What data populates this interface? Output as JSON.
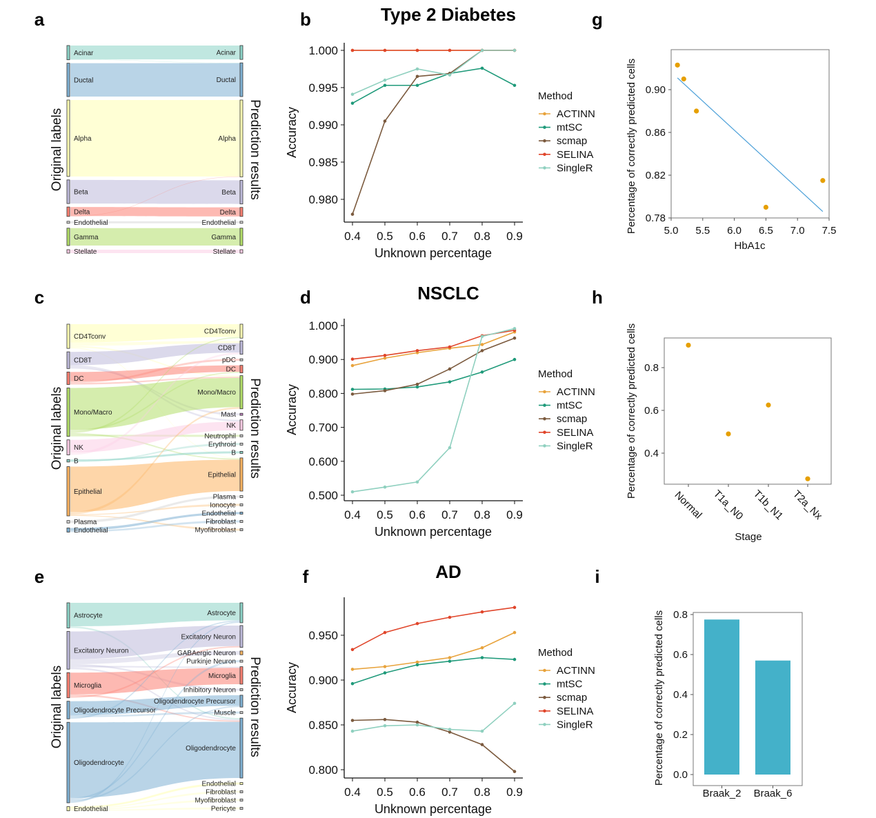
{
  "sankeys": [
    {
      "letter": "a",
      "left_axis_label": "Original labels",
      "right_axis_label": "Prediction results",
      "colors": {
        "Acinar": "#8dd3c7",
        "Ductal": "#80b1d3",
        "Alpha": "#ffffb3",
        "Beta": "#bebada",
        "Delta": "#fb8072",
        "Endothelial": "#d9d9d9",
        "Gamma": "#b3de69",
        "Stellate": "#fccde5"
      },
      "left_order": [
        "Acinar",
        "Ductal",
        "Alpha",
        "Beta",
        "Delta",
        "Endothelial",
        "Gamma",
        "Stellate"
      ],
      "right_order": [
        "Acinar",
        "Ductal",
        "Alpha",
        "Beta",
        "Delta",
        "Endothelial",
        "Gamma",
        "Stellate"
      ],
      "links": [
        [
          "Acinar",
          "Acinar",
          20
        ],
        [
          "Acinar",
          "Ductal",
          0.5
        ],
        [
          "Ductal",
          "Ductal",
          48
        ],
        [
          "Alpha",
          "Alpha",
          110
        ],
        [
          "Beta",
          "Beta",
          34
        ],
        [
          "Delta",
          "Delta",
          13
        ],
        [
          "Delta",
          "Alpha",
          0.6
        ],
        [
          "Endothelial",
          "Endothelial",
          1.5
        ],
        [
          "Gamma",
          "Gamma",
          25
        ],
        [
          "Stellate",
          "Stellate",
          5
        ]
      ]
    },
    {
      "letter": "c",
      "left_axis_label": "Original labels",
      "right_axis_label": "Prediction results",
      "colors": {
        "CD4Tconv": "#ffffb3",
        "CD8T": "#bebada",
        "DC": "#fb8072",
        "pDC": "#cccccc",
        "Mono/Macro": "#b3de69",
        "Mast": "#bc80bd",
        "NK": "#fccde5",
        "B": "#8dd3c7",
        "Neutrophil": "#cccccc",
        "Erythroid": "#cccccc",
        "Epithelial": "#fdb462",
        "Plasma": "#d9d9d9",
        "Ionocyte": "#cccccc",
        "Endothelial": "#80b1d3",
        "Fibroblast": "#cccccc",
        "Myofibroblast": "#cccccc"
      },
      "left_order": [
        "CD4Tconv",
        "CD8T",
        "DC",
        "Mono/Macro",
        "NK",
        "B",
        "Epithelial",
        "Plasma",
        "Endothelial"
      ],
      "right_order": [
        "CD4Tconv",
        "CD8T",
        "pDC",
        "DC",
        "Mono/Macro",
        "Mast",
        "NK",
        "Neutrophil",
        "Erythroid",
        "B",
        "Epithelial",
        "Plasma",
        "Ionocyte",
        "Endothelial",
        "Fibroblast",
        "Myofibroblast"
      ],
      "links": [
        [
          "CD4Tconv",
          "CD4Tconv",
          22
        ],
        [
          "CD4Tconv",
          "CD8T",
          4
        ],
        [
          "CD4Tconv",
          "Mono/Macro",
          2
        ],
        [
          "CD4Tconv",
          "Epithelial",
          1
        ],
        [
          "CD8T",
          "CD8T",
          16
        ],
        [
          "CD8T",
          "NK",
          3
        ],
        [
          "CD8T",
          "Mast",
          1
        ],
        [
          "DC",
          "DC",
          11
        ],
        [
          "DC",
          "pDC",
          2
        ],
        [
          "DC",
          "Mono/Macro",
          2
        ],
        [
          "Mono/Macro",
          "Mono/Macro",
          50
        ],
        [
          "Mono/Macro",
          "DC",
          2
        ],
        [
          "Mono/Macro",
          "CD4Tconv",
          2
        ],
        [
          "Mono/Macro",
          "Epithelial",
          2
        ],
        [
          "Mono/Macro",
          "Neutrophil",
          2
        ],
        [
          "NK",
          "NK",
          15
        ],
        [
          "NK",
          "CD8T",
          3
        ],
        [
          "B",
          "B",
          2
        ],
        [
          "B",
          "Erythroid",
          1
        ],
        [
          "Epithelial",
          "Epithelial",
          54
        ],
        [
          "Epithelial",
          "Mono/Macro",
          3
        ],
        [
          "Epithelial",
          "Ionocyte",
          1
        ],
        [
          "Epithelial",
          "Myofibroblast",
          1
        ],
        [
          "Plasma",
          "Plasma",
          3
        ],
        [
          "Endothelial",
          "Endothelial",
          3
        ],
        [
          "Endothelial",
          "Fibroblast",
          2
        ]
      ]
    },
    {
      "letter": "e",
      "left_axis_label": "Original labels",
      "right_axis_label": "Prediction results",
      "colors": {
        "Astrocyte": "#8dd3c7",
        "Excitatory Neuron": "#bebada",
        "GABAergic Neuron": "#fdb462",
        "Purkinje Neuron": "#cccccc",
        "Microglia": "#fb8072",
        "Inhibitory Neuron": "#cccccc",
        "Oligodendrocyte Precursor": "#80b1d3",
        "Muscle": "#cccccc",
        "Oligodendrocyte": "#80b1d3",
        "Endothelial": "#ffffb3",
        "Fibroblast": "#cccccc",
        "Myofibroblast": "#cccccc",
        "Pericyte": "#cccccc"
      },
      "left_order": [
        "Astrocyte",
        "Excitatory Neuron",
        "Microglia",
        "Oligodendrocyte Precursor",
        "Oligodendrocyte",
        "Endothelial"
      ],
      "right_order": [
        "Astrocyte",
        "Excitatory Neuron",
        "GABAergic Neuron",
        "Purkinje Neuron",
        "Microglia",
        "Inhibitory Neuron",
        "Oligodendrocyte Precursor",
        "Muscle",
        "Oligodendrocyte",
        "Endothelial",
        "Fibroblast",
        "Myofibroblast",
        "Pericyte"
      ],
      "links": [
        [
          "Astrocyte",
          "Astrocyte",
          28
        ],
        [
          "Astrocyte",
          "Oligodendrocyte",
          2
        ],
        [
          "Excitatory Neuron",
          "Excitatory Neuron",
          33
        ],
        [
          "Excitatory Neuron",
          "GABAergic Neuron",
          6
        ],
        [
          "Excitatory Neuron",
          "Inhibitory Neuron",
          2
        ],
        [
          "Excitatory Neuron",
          "Microglia",
          2
        ],
        [
          "Excitatory Neuron",
          "Oligodendrocyte",
          2
        ],
        [
          "Microglia",
          "Microglia",
          26
        ],
        [
          "Microglia",
          "Oligodendrocyte",
          2
        ],
        [
          "Microglia",
          "Excitatory Neuron",
          2
        ],
        [
          "Oligodendrocyte Precursor",
          "Oligodendrocyte Precursor",
          17
        ],
        [
          "Oligodendrocyte Precursor",
          "Muscle",
          2
        ],
        [
          "Oligodendrocyte Precursor",
          "Astrocyte",
          2
        ],
        [
          "Oligodendrocyte",
          "Oligodendrocyte",
          90
        ],
        [
          "Oligodendrocyte",
          "Purkinje Neuron",
          2
        ],
        [
          "Oligodendrocyte",
          "Oligodendrocyte Precursor",
          2
        ],
        [
          "Oligodendrocyte",
          "Astrocyte",
          2
        ],
        [
          "Endothelial",
          "Endothelial",
          2
        ],
        [
          "Endothelial",
          "Fibroblast",
          1
        ],
        [
          "Endothelial",
          "Myofibroblast",
          1
        ],
        [
          "Endothelial",
          "Pericyte",
          1
        ]
      ]
    }
  ],
  "chart_data": [
    {
      "letter": "b",
      "type": "line",
      "title": "Type 2 Diabetes",
      "xlabel": "Unknown percentage",
      "ylabel": "Accuracy",
      "x": [
        0.4,
        0.5,
        0.6,
        0.7,
        0.8,
        0.9
      ],
      "xticks": [
        "0.4",
        "0.5",
        "0.6",
        "0.7",
        "0.8",
        "0.9"
      ],
      "yticks": [
        "0.980",
        "0.985",
        "0.990",
        "0.995",
        "1.000"
      ],
      "ylim": [
        0.9775,
        1.001
      ],
      "legend_title": "Method",
      "legend_position": "right",
      "series": [
        {
          "name": "ACTINN",
          "color": "#e8a33c",
          "values": [
            1,
            1,
            1,
            1,
            1,
            1
          ]
        },
        {
          "name": "mtSC",
          "color": "#1f9a7a",
          "values": [
            0.9929,
            0.9953,
            0.9953,
            0.9969,
            0.9976,
            0.9953
          ]
        },
        {
          "name": "scmap",
          "color": "#7b5a3e",
          "values": [
            0.978,
            0.9905,
            0.9965,
            0.9969,
            1,
            1
          ]
        },
        {
          "name": "SELINA",
          "color": "#e0452a",
          "values": [
            1,
            1,
            1,
            1,
            1,
            1
          ]
        },
        {
          "name": "SingleR",
          "color": "#8fd0bf",
          "values": [
            0.9941,
            0.996,
            0.9975,
            0.9967,
            1,
            1
          ]
        }
      ]
    },
    {
      "letter": "d",
      "type": "line",
      "title": "NSCLC",
      "xlabel": "Unknown percentage",
      "ylabel": "Accuracy",
      "x": [
        0.4,
        0.5,
        0.6,
        0.7,
        0.8,
        0.9
      ],
      "xticks": [
        "0.4",
        "0.5",
        "0.6",
        "0.7",
        "0.8",
        "0.9"
      ],
      "yticks": [
        "0.500",
        "0.600",
        "0.700",
        "0.800",
        "0.900",
        "1.000"
      ],
      "ylim": [
        0.49,
        1.01
      ],
      "legend_title": "Method",
      "legend_position": "right",
      "series": [
        {
          "name": "ACTINN",
          "color": "#e8a33c",
          "values": [
            0.882,
            0.904,
            0.92,
            0.933,
            0.944,
            0.981
          ]
        },
        {
          "name": "mtSC",
          "color": "#1f9a7a",
          "values": [
            0.812,
            0.813,
            0.819,
            0.834,
            0.863,
            0.9
          ]
        },
        {
          "name": "scmap",
          "color": "#7b5a3e",
          "values": [
            0.798,
            0.808,
            0.827,
            0.872,
            0.926,
            0.963
          ]
        },
        {
          "name": "SELINA",
          "color": "#e0452a",
          "values": [
            0.901,
            0.912,
            0.926,
            0.937,
            0.97,
            0.986
          ]
        },
        {
          "name": "SingleR",
          "color": "#8fd0bf",
          "values": [
            0.51,
            0.524,
            0.539,
            0.64,
            0.968,
            0.991
          ]
        }
      ]
    },
    {
      "letter": "f",
      "type": "line",
      "title": "AD",
      "xlabel": "Unknown percentage",
      "ylabel": "Accuracy",
      "x": [
        0.4,
        0.5,
        0.6,
        0.7,
        0.8,
        0.9
      ],
      "xticks": [
        "0.4",
        "0.5",
        "0.6",
        "0.7",
        "0.8",
        "0.9"
      ],
      "yticks": [
        "0.800",
        "0.850",
        "0.900",
        "0.950"
      ],
      "ylim": [
        0.795,
        0.989
      ],
      "legend_title": "Method",
      "legend_position": "right",
      "series": [
        {
          "name": "ACTINN",
          "color": "#e8a33c",
          "values": [
            0.912,
            0.915,
            0.92,
            0.925,
            0.936,
            0.953
          ]
        },
        {
          "name": "mtSC",
          "color": "#1f9a7a",
          "values": [
            0.896,
            0.908,
            0.917,
            0.921,
            0.925,
            0.923
          ]
        },
        {
          "name": "scmap",
          "color": "#7b5a3e",
          "values": [
            0.855,
            0.856,
            0.853,
            0.842,
            0.828,
            0.798
          ]
        },
        {
          "name": "SELINA",
          "color": "#e0452a",
          "values": [
            0.934,
            0.953,
            0.963,
            0.97,
            0.976,
            0.981
          ]
        },
        {
          "name": "SingleR",
          "color": "#8fd0bf",
          "values": [
            0.843,
            0.849,
            0.85,
            0.845,
            0.843,
            0.874
          ]
        }
      ]
    },
    {
      "letter": "g",
      "type": "scatter",
      "xlabel": "HbA1c",
      "ylabel": "Percentage of correctly predicted cells",
      "xlim": [
        5.0,
        7.5
      ],
      "ylim": [
        0.78,
        0.937
      ],
      "xticks": [
        "5.0",
        "5.5",
        "6.0",
        "6.5",
        "7.0",
        "7.5"
      ],
      "yticks": [
        "0.78",
        "0.82",
        "0.86",
        "0.90"
      ],
      "point_color": "#e69f00",
      "fit_color": "#4a9fd8",
      "points": [
        [
          5.1,
          0.923
        ],
        [
          5.2,
          0.91
        ],
        [
          5.4,
          0.88
        ],
        [
          6.5,
          0.79
        ],
        [
          7.4,
          0.815
        ]
      ],
      "fit_line": [
        [
          5.1,
          0.911
        ],
        [
          7.4,
          0.786
        ]
      ]
    },
    {
      "letter": "h",
      "type": "scatter",
      "xlabel": "Stage",
      "ylabel": "Percentage of correctly predicted cells",
      "categories": [
        "Normal",
        "T1a_N0",
        "T1b_N1",
        "T2a_Nx"
      ],
      "values": [
        0.905,
        0.49,
        0.625,
        0.28
      ],
      "ylim": [
        0.25,
        0.95
      ],
      "yticks": [
        "0.4",
        "0.6",
        "0.8"
      ],
      "point_color": "#e69f00"
    },
    {
      "letter": "i",
      "type": "bar",
      "xlabel": "",
      "ylabel": "Percentage of correctly predicted cells",
      "categories": [
        "Braak_2",
        "Braak_6"
      ],
      "values": [
        0.775,
        0.57
      ],
      "ylim": [
        -0.04,
        0.81
      ],
      "yticks": [
        "0.0",
        "0.2",
        "0.4",
        "0.6",
        "0.8"
      ],
      "bar_color": "#44b1c9"
    }
  ]
}
